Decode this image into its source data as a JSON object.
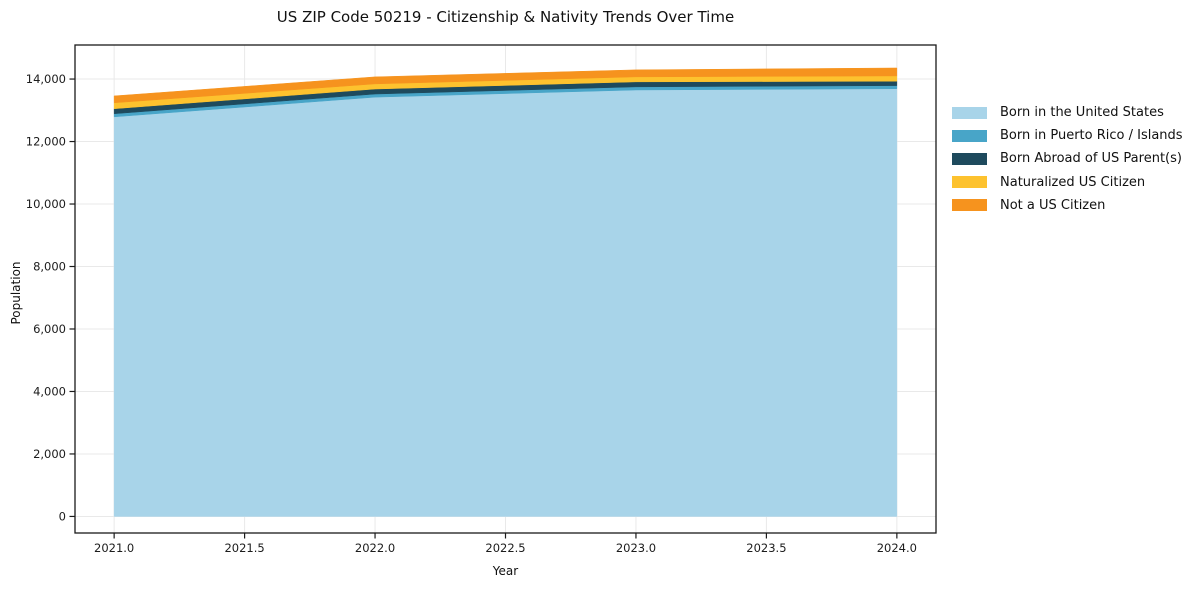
{
  "chart_data": {
    "type": "area",
    "stacked": true,
    "title": "US ZIP Code 50219 - Citizenship & Nativity Trends Over Time",
    "xlabel": "Year",
    "ylabel": "Population",
    "x": [
      2021,
      2022,
      2023,
      2024
    ],
    "series": [
      {
        "name": "Born in the United States",
        "color": "#a8d4e9",
        "values": [
          12790,
          13420,
          13650,
          13690
        ]
      },
      {
        "name": "Born in Puerto Rico / Islands",
        "color": "#48a5c8",
        "values": [
          100,
          100,
          100,
          100
        ]
      },
      {
        "name": "Born Abroad of US Parent(s)",
        "color": "#1e4a5d",
        "values": [
          160,
          160,
          160,
          140
        ]
      },
      {
        "name": "Naturalized US Citizen",
        "color": "#fdc22e",
        "values": [
          190,
          165,
          160,
          170
        ]
      },
      {
        "name": "Not a US Citizen",
        "color": "#f6931e",
        "values": [
          220,
          225,
          225,
          255
        ]
      }
    ],
    "xlim": [
      2020.85,
      2024.15
    ],
    "ylim": [
      -530,
      15090
    ],
    "x_ticks": [
      2021.0,
      2021.5,
      2022.0,
      2022.5,
      2023.0,
      2023.5,
      2024.0
    ],
    "x_tick_labels": [
      "2021.0",
      "2021.5",
      "2022.0",
      "2022.5",
      "2023.0",
      "2023.5",
      "2024.0"
    ],
    "y_ticks": [
      0,
      2000,
      4000,
      6000,
      8000,
      10000,
      12000,
      14000
    ],
    "y_tick_labels": [
      "0",
      "2,000",
      "4,000",
      "6,000",
      "8,000",
      "10,000",
      "12,000",
      "14,000"
    ],
    "grid": true,
    "grid_color": "#e9e9e9",
    "spine_color": "#1a1a1a",
    "legend_position": "right-outside"
  }
}
